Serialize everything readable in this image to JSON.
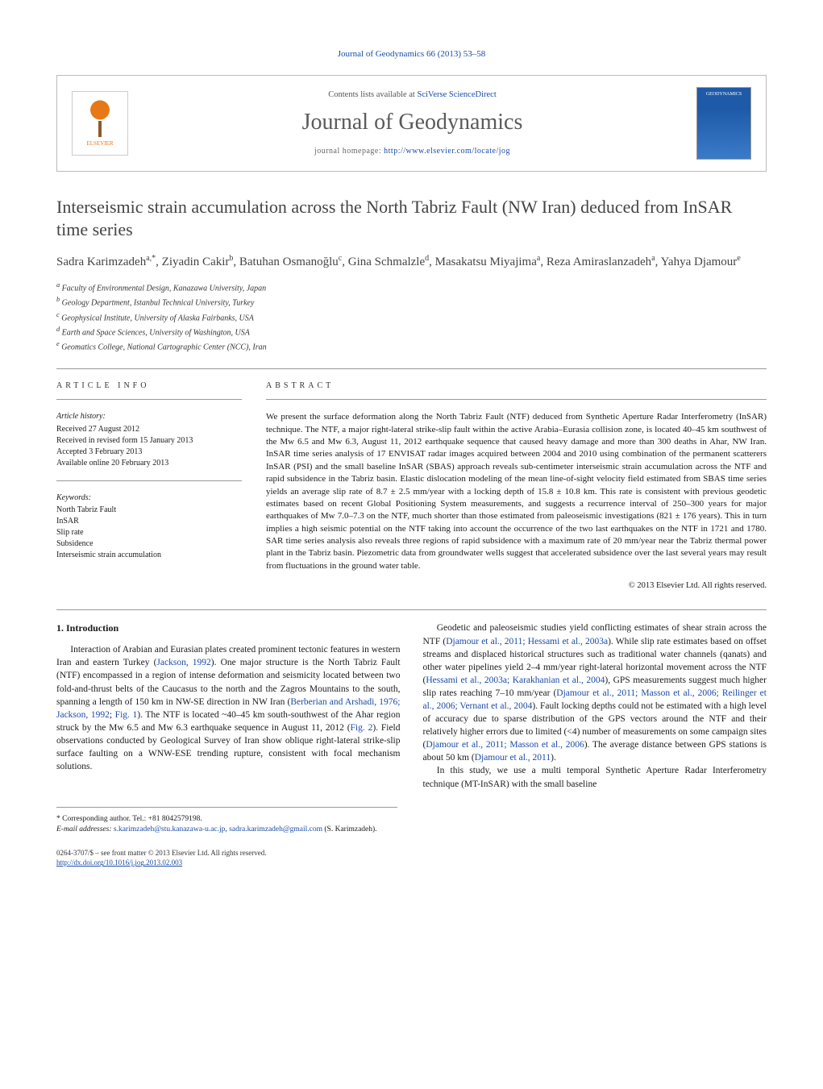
{
  "journal_ref": "Journal of Geodynamics 66 (2013) 53–58",
  "header": {
    "contents_prefix": "Contents lists available at ",
    "contents_link": "SciVerse ScienceDirect",
    "journal_name": "Journal of Geodynamics",
    "homepage_prefix": "journal homepage: ",
    "homepage_url": "http://www.elsevier.com/locate/jog",
    "publisher_logo_label": "ELSEVIER",
    "cover_label": "GEODYNAMICS"
  },
  "title": "Interseismic strain accumulation across the North Tabriz Fault (NW Iran) deduced from InSAR time series",
  "authors_html": "Sadra Karimzadeh<sup>a,*</sup>, Ziyadin Cakir<sup>b</sup>, Batuhan Osmanoğlu<sup>c</sup>, Gina Schmalzle<sup>d</sup>, Masakatsu Miyajima<sup>a</sup>, Reza Amiraslanzadeh<sup>a</sup>, Yahya Djamour<sup>e</sup>",
  "affiliations": [
    "a Faculty of Environmental Design, Kanazawa University, Japan",
    "b Geology Department, Istanbul Technical University, Turkey",
    "c Geophysical Institute, University of Alaska Fairbanks, USA",
    "d Earth and Space Sciences, University of Washington, USA",
    "e Geomatics College, National Cartographic Center (NCC), Iran"
  ],
  "article_info_header": "article info",
  "history": {
    "label": "Article history:",
    "received": "Received 27 August 2012",
    "revised": "Received in revised form 15 January 2013",
    "accepted": "Accepted 3 February 2013",
    "online": "Available online 20 February 2013"
  },
  "keywords": {
    "label": "Keywords:",
    "items": [
      "North Tabriz Fault",
      "InSAR",
      "Slip rate",
      "Subsidence",
      "Interseismic strain accumulation"
    ]
  },
  "abstract_header": "abstract",
  "abstract": "We present the surface deformation along the North Tabriz Fault (NTF) deduced from Synthetic Aperture Radar Interferometry (InSAR) technique. The NTF, a major right-lateral strike-slip fault within the active Arabia–Eurasia collision zone, is located 40–45 km southwest of the Mw 6.5 and Mw 6.3, August 11, 2012 earthquake sequence that caused heavy damage and more than 300 deaths in Ahar, NW Iran. InSAR time series analysis of 17 ENVISAT radar images acquired between 2004 and 2010 using combination of the permanent scatterers InSAR (PSI) and the small baseline InSAR (SBAS) approach reveals sub-centimeter interseismic strain accumulation across the NTF and rapid subsidence in the Tabriz basin. Elastic dislocation modeling of the mean line-of-sight velocity field estimated from SBAS time series yields an average slip rate of 8.7 ± 2.5 mm/year with a locking depth of 15.8 ± 10.8 km. This rate is consistent with previous geodetic estimates based on recent Global Positioning System measurements, and suggests a recurrence interval of 250–300 years for major earthquakes of Mw 7.0–7.3 on the NTF, much shorter than those estimated from paleoseismic investigations (821 ± 176 years). This in turn implies a high seismic potential on the NTF taking into account the occurrence of the two last earthquakes on the NTF in 1721 and 1780. SAR time series analysis also reveals three regions of rapid subsidence with a maximum rate of 20 mm/year near the Tabriz thermal power plant in the Tabriz basin. Piezometric data from groundwater wells suggest that accelerated subsidence over the last several years may result from fluctuations in the ground water table.",
  "copyright": "© 2013 Elsevier Ltd. All rights reserved.",
  "section1_heading": "1.  Introduction",
  "body": {
    "p1_a": "Interaction of Arabian and Eurasian plates created prominent tectonic features in western Iran and eastern Turkey (",
    "p1_cite1": "Jackson, 1992",
    "p1_b": "). One major structure is the North Tabriz Fault (NTF) encompassed in a region of intense deformation and seismicity located between two fold-and-thrust belts of the Caucasus to the north and the Zagros Mountains to the south, spanning a length of 150 km in NW-SE direction in NW Iran (",
    "p1_cite2": "Berberian and Arshadi, 1976; Jackson, 1992",
    "p1_c": "; ",
    "p1_fig1": "Fig. 1",
    "p1_d": "). The NTF is located ~40–45 km south-southwest of the Ahar region struck by the Mw 6.5 and Mw 6.3 earthquake sequence in August 11, 2012 (",
    "p1_fig2": "Fig. 2",
    "p1_e": "). Field observations conducted by Geological Survey of Iran show oblique right-lateral strike-slip surface faulting on a WNW-ESE trending rupture, consistent with focal mechanism solutions.",
    "p2_a": "Geodetic and paleoseismic studies yield conflicting estimates of shear strain across the NTF (",
    "p2_cite1": "Djamour et al., 2011; Hessami et al., 2003a",
    "p2_b": "). While slip rate estimates based on offset streams and displaced historical structures such as traditional water channels (qanats) and other water pipelines yield 2–4 mm/year right-lateral horizontal movement across the NTF (",
    "p2_cite2": "Hessami et al., 2003a; Karakhanian et al., 2004",
    "p2_c": "), GPS measurements suggest much higher slip rates reaching 7–10 mm/year (",
    "p2_cite3": "Djamour et al., 2011; Masson et al., 2006; Reilinger et al., 2006; Vernant et al., 2004",
    "p2_d": "). Fault locking depths could not be estimated with a high level of accuracy due to sparse distribution of the GPS vectors around the NTF and their relatively higher errors due to limited (<4) number of measurements on some campaign sites (",
    "p2_cite4": "Djamour et al., 2011; Masson et al., 2006",
    "p2_e": "). The average distance between GPS stations is about 50 km (",
    "p2_cite5": "Djamour et al., 2011",
    "p2_f": ").",
    "p3": "In this study, we use a multi temporal Synthetic Aperture Radar Interferometry technique (MT-InSAR) with the small baseline"
  },
  "footnotes": {
    "corr_label": "* Corresponding author. Tel.: +81 8042579198.",
    "email_label": "E-mail addresses: ",
    "email1": "s.karimzadeh@stu.kanazawa-u.ac.jp",
    "email_sep": ", ",
    "email2": "sadra.karimzadeh@gmail.com",
    "email_suffix": " (S. Karimzadeh)."
  },
  "bottom": {
    "issn_line": "0264-3707/$ – see front matter © 2013 Elsevier Ltd. All rights reserved.",
    "doi": "http://dx.doi.org/10.1016/j.jog.2013.02.003"
  }
}
